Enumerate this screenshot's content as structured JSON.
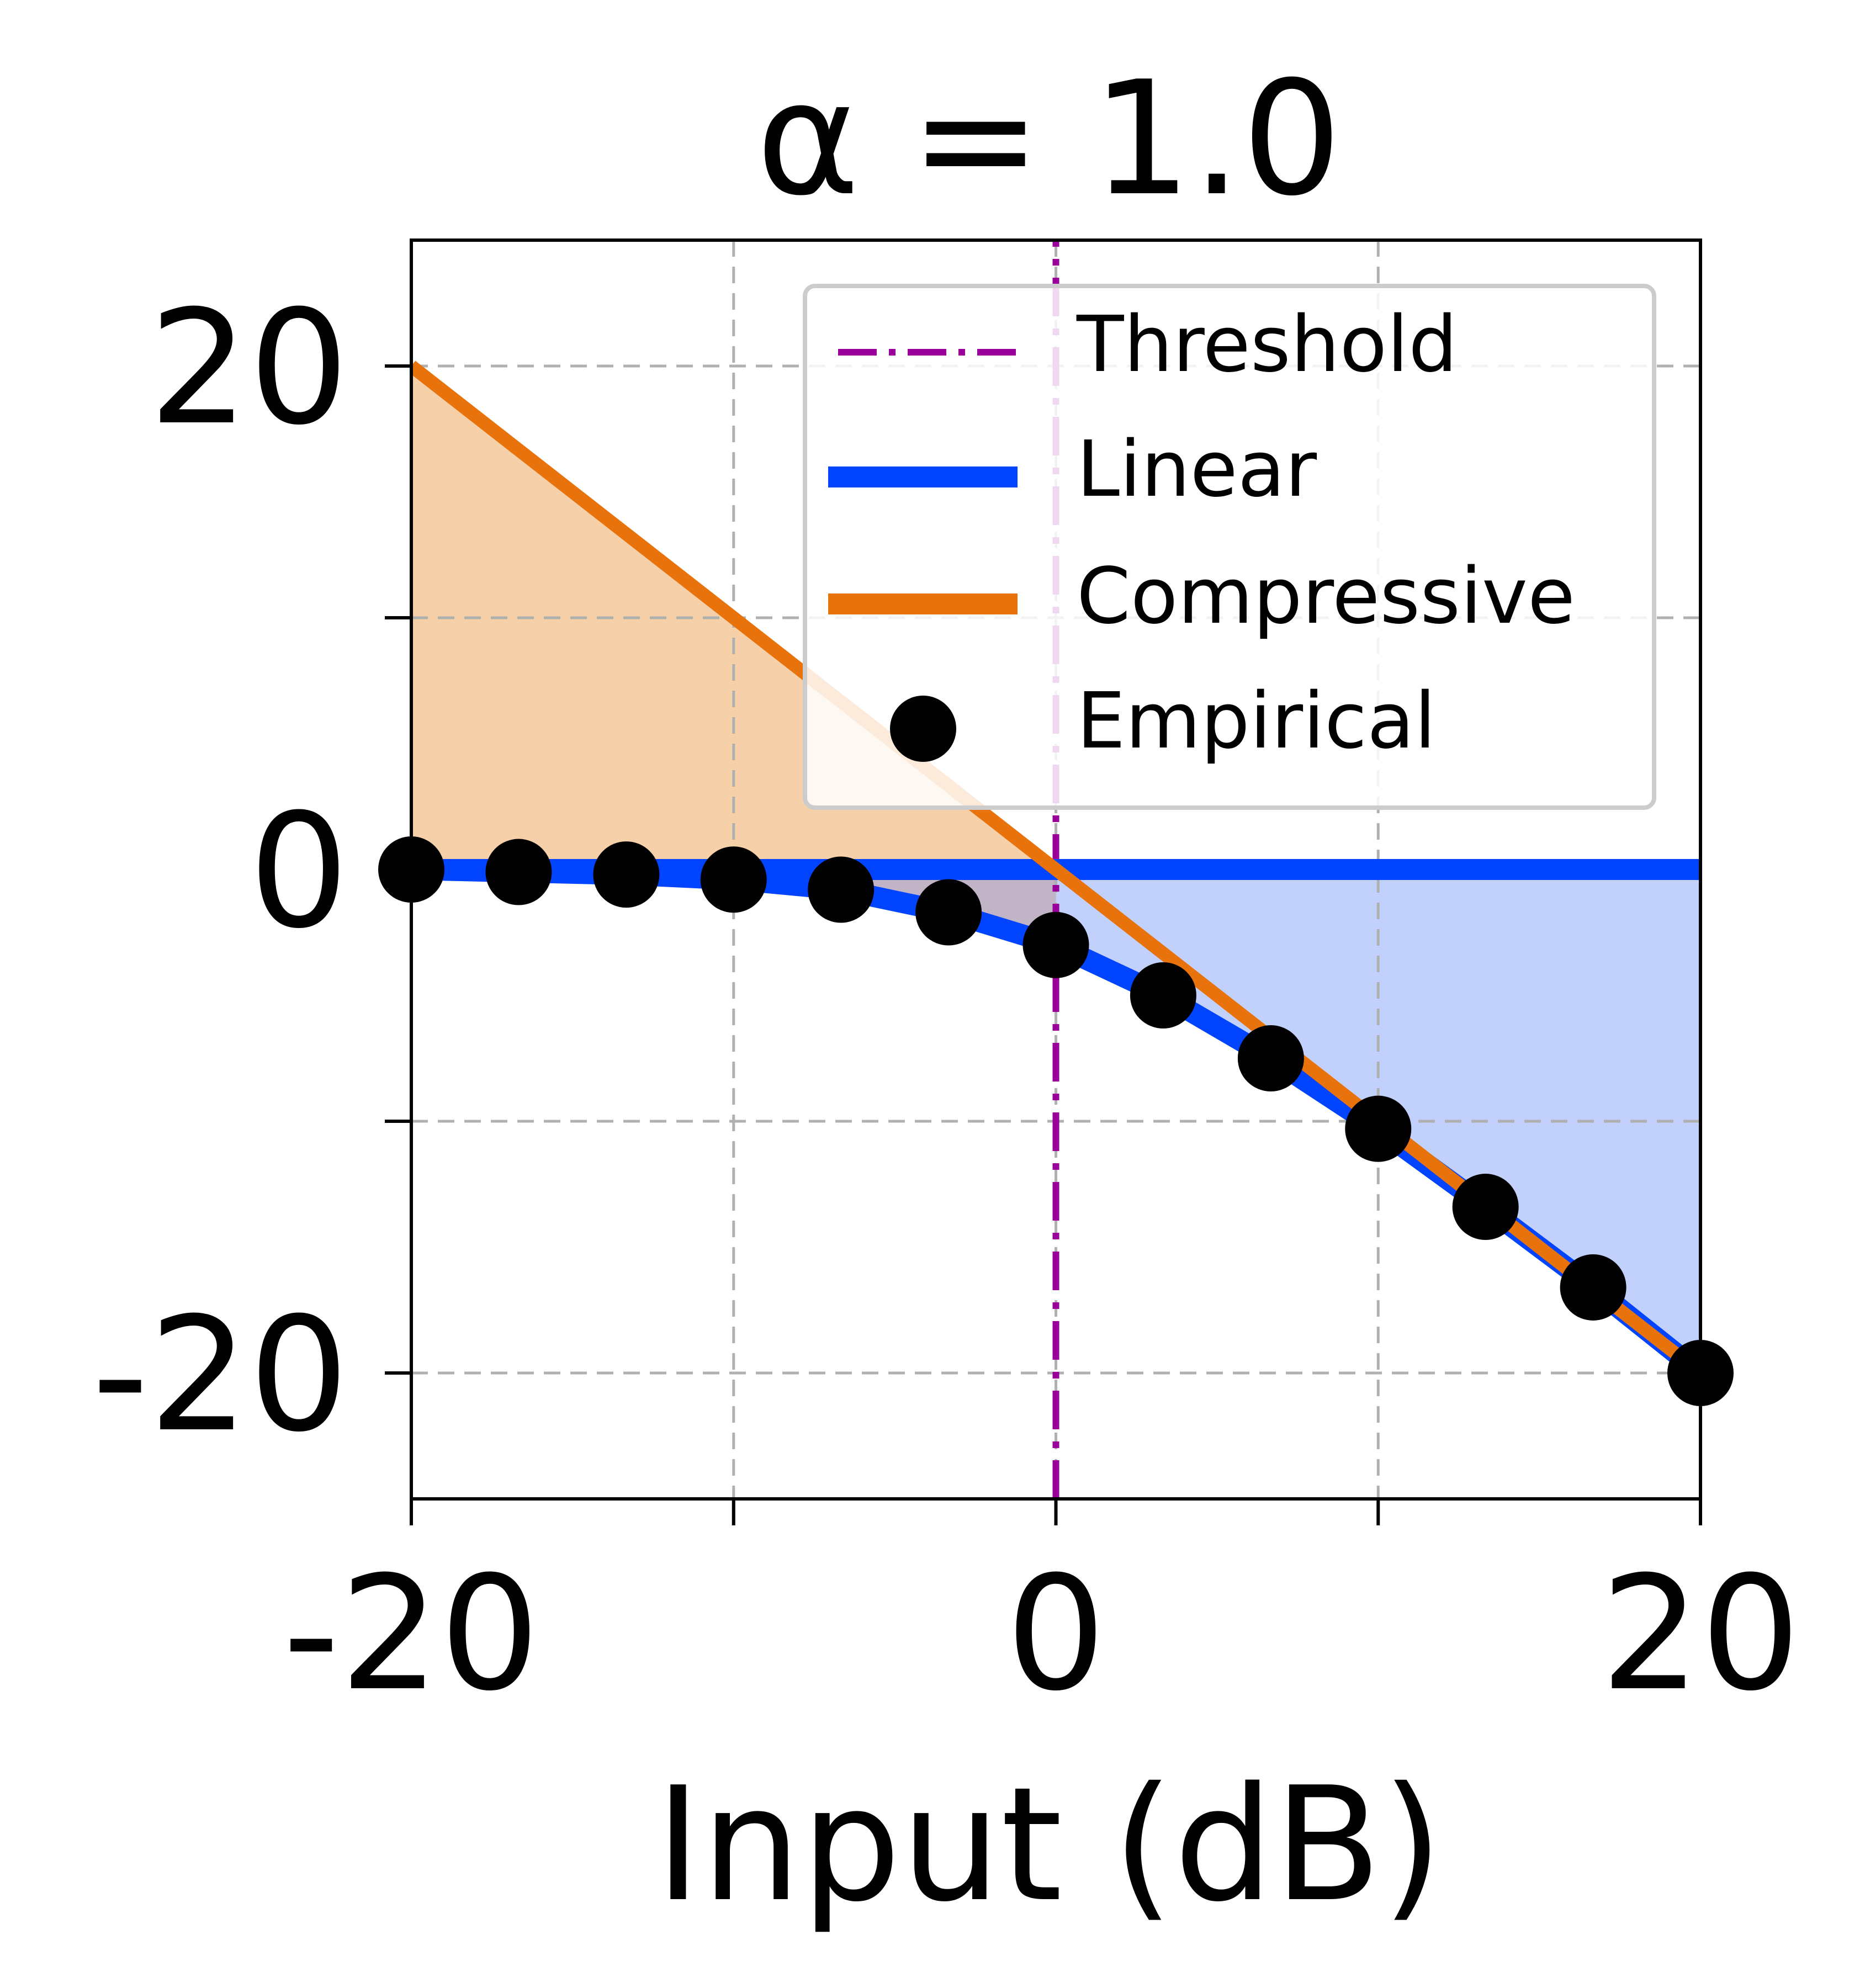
{
  "chart_data": {
    "type": "line",
    "title": "α = 1.0",
    "xlabel": "Input (dB)",
    "ylabel": "",
    "xlim": [
      -20,
      20
    ],
    "ylim": [
      -25,
      25
    ],
    "x_ticks": [
      -20,
      -10,
      0,
      10,
      20
    ],
    "x_tick_labels": [
      "-20",
      "",
      "0",
      "",
      "20"
    ],
    "y_ticks": [
      -20,
      -10,
      0,
      10,
      20
    ],
    "y_tick_labels": [
      "-20",
      "",
      "0",
      "",
      "20"
    ],
    "grid": true,
    "legend_position": "top-right",
    "threshold": 0,
    "colors": {
      "threshold": "#990099",
      "linear": "#0044ff",
      "compressive": "#e8730c",
      "empirical": "#000000",
      "compressive_fill": "#f6d0a8",
      "linear_fill": "#bfcffb",
      "grid": "#b0b0b0"
    },
    "series": [
      {
        "name": "Threshold",
        "style": "dash-dot vertical line",
        "x": [
          0,
          0
        ],
        "y": [
          -25,
          25
        ]
      },
      {
        "name": "Linear",
        "style": "solid",
        "x": [
          -20,
          20
        ],
        "y": [
          0,
          0
        ]
      },
      {
        "name": "Compressive",
        "style": "solid",
        "x": [
          -20,
          0,
          20
        ],
        "y": [
          20,
          0,
          -20
        ]
      },
      {
        "name": "Empirical",
        "style": "markers",
        "x": [
          -20,
          -16.67,
          -13.33,
          -10,
          -6.67,
          -3.33,
          0,
          3.33,
          6.67,
          10,
          13.33,
          16.67,
          20
        ],
        "y": [
          0,
          -0.1,
          -0.2,
          -0.4,
          -0.8,
          -1.7,
          -3.0,
          -5.0,
          -7.5,
          -10.3,
          -13.4,
          -16.6,
          -20
        ]
      }
    ]
  }
}
